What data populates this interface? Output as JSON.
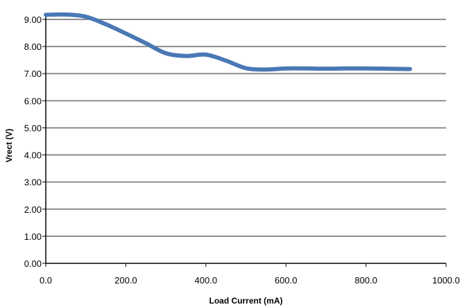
{
  "chart_data": {
    "type": "line",
    "title": "",
    "xlabel": "Load Current (mA)",
    "ylabel": "Vrect (V)",
    "xlim": [
      0,
      1000
    ],
    "ylim": [
      0,
      9.0
    ],
    "x_ticks": [
      "0.0",
      "200.0",
      "400.0",
      "600.0",
      "800.0",
      "1000.0"
    ],
    "y_ticks": [
      "0.00",
      "1.00",
      "2.00",
      "3.00",
      "4.00",
      "5.00",
      "6.00",
      "7.00",
      "8.00",
      "9.00"
    ],
    "grid": true,
    "legend": "none",
    "colors": {
      "line": "#4a78b5",
      "grid": "#8c8c8c",
      "axis": "#000000"
    },
    "series": [
      {
        "x": [
          0,
          50,
          100,
          150,
          200,
          250,
          300,
          350,
          400,
          450,
          500,
          550,
          600,
          650,
          700,
          750,
          800,
          850,
          910
        ],
        "values": [
          9.17,
          9.18,
          9.1,
          8.82,
          8.48,
          8.12,
          7.75,
          7.65,
          7.7,
          7.48,
          7.2,
          7.15,
          7.19,
          7.19,
          7.18,
          7.19,
          7.19,
          7.18,
          7.17
        ]
      }
    ]
  }
}
